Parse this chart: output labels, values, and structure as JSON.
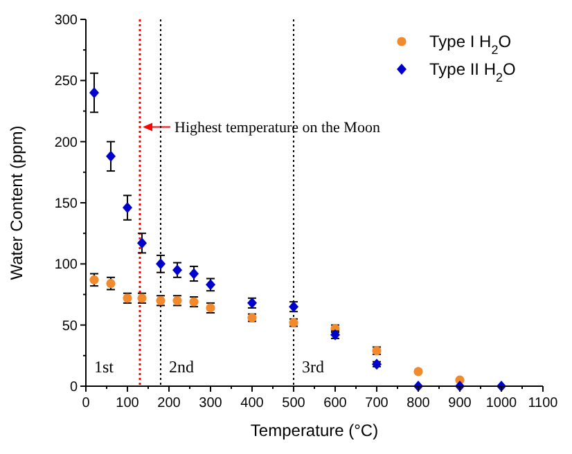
{
  "chart_data": {
    "type": "scatter",
    "xlabel": "Temperature (°C)",
    "ylabel": "Water Content (ppm)",
    "xlim": [
      0,
      1100
    ],
    "xticks": [
      0,
      100,
      200,
      300,
      400,
      500,
      600,
      700,
      800,
      900,
      1000,
      1100
    ],
    "ylim": [
      0,
      300
    ],
    "yticks": [
      0,
      50,
      100,
      150,
      200,
      250,
      300
    ],
    "grid": false,
    "legend": "top right",
    "series": [
      {
        "name": "Type I H$_{2}$O",
        "color": "#f08a2c",
        "marker": "circle",
        "x": [
          20,
          60,
          100,
          135,
          180,
          220,
          260,
          300,
          400,
          500,
          600,
          700,
          800,
          900
        ],
        "values": [
          87,
          84,
          72,
          72,
          70,
          70,
          69,
          64,
          56,
          52,
          47,
          29,
          12,
          5
        ],
        "errors": [
          5,
          5,
          4,
          4,
          4,
          4,
          4,
          4,
          3,
          3,
          3,
          3,
          1,
          null
        ]
      },
      {
        "name": "Type II H$_{2}$O",
        "color": "#0000cc",
        "marker": "diamond",
        "x": [
          20,
          60,
          100,
          135,
          180,
          220,
          260,
          300,
          400,
          500,
          600,
          700,
          800,
          900,
          1000
        ],
        "values": [
          240,
          188,
          146,
          117,
          100,
          95,
          92,
          83,
          68,
          65,
          42,
          18,
          0,
          0,
          0
        ],
        "errors": [
          16,
          12,
          10,
          8,
          7,
          6,
          6,
          5,
          4,
          4,
          3,
          2,
          null,
          null,
          null
        ]
      }
    ],
    "ref_lines": [
      {
        "axis": "x",
        "value": 130,
        "label": "Highest temperature on the Moon",
        "color": "#ff0000",
        "line_style": "dotted"
      },
      {
        "axis": "x",
        "value": 180,
        "color": "#000000",
        "line_style": "dotted"
      },
      {
        "axis": "x",
        "value": 500,
        "color": "#000000",
        "line_style": "dotted"
      }
    ],
    "annotations": [
      "1st",
      "2nd",
      "3rd"
    ]
  }
}
